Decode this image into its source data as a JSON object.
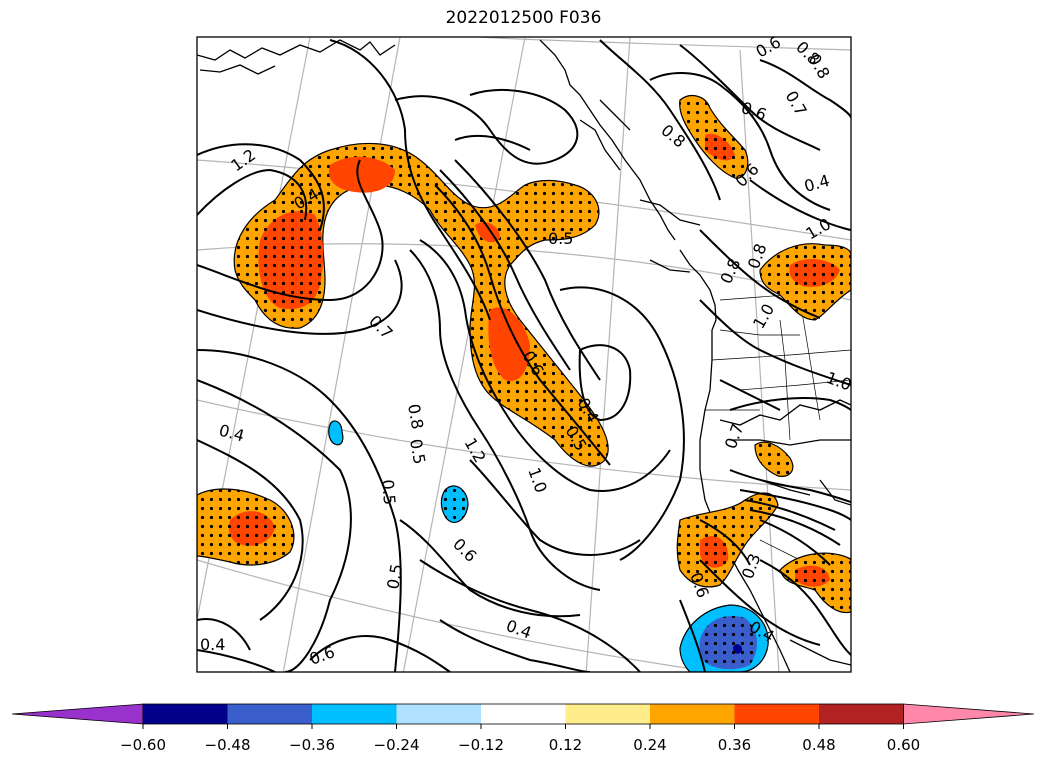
{
  "title": "2022012500 F036",
  "contour_labels": [
    "1.2",
    "0.5",
    "0.7",
    "0.6",
    "0.8",
    "0.4",
    "0.8",
    "0.6",
    "0.8",
    "0.7",
    "0.6",
    "0.8",
    "0.5",
    "1.0",
    "0.8",
    "0.6",
    "0.4",
    "0.5",
    "0.4",
    "1.2",
    "1.0",
    "0.8",
    "0.5",
    "0.6",
    "0.5",
    "0.4",
    "0.4",
    "0.6",
    "0.4",
    "1.0",
    "0.7",
    "1.0",
    "0.6",
    "0.3",
    "0.4"
  ],
  "colorbar": {
    "colors": [
      "#9932CC",
      "#00008B",
      "#3A5FCD",
      "#00BFFF",
      "#B0E2FF",
      "#FFFFFF",
      "#FFEC8B",
      "#FFA500",
      "#FF4500",
      "#B22222",
      "#FF88AA"
    ],
    "ticks": [
      "−0.60",
      "−0.48",
      "−0.36",
      "−0.24",
      "−0.12",
      "0.12",
      "0.24",
      "0.36",
      "0.48",
      "0.60"
    ]
  },
  "fill_colors": {
    "orange": "#FFA500",
    "red_orange": "#FF4500",
    "light_blue": "#00BFFF",
    "blue": "#3A5FCD",
    "navy": "#00008B"
  }
}
